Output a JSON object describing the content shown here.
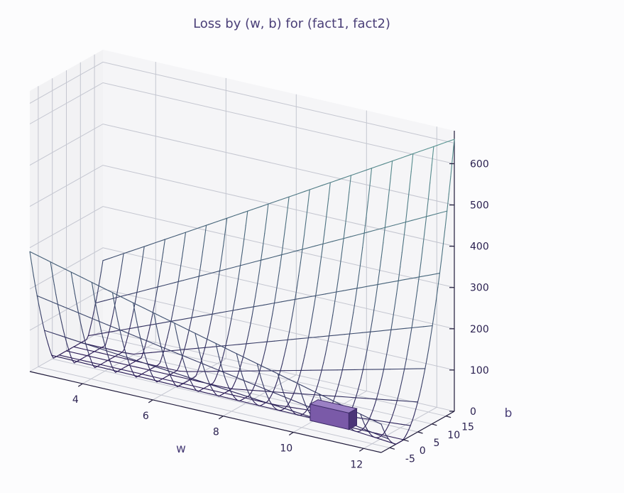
{
  "chart_data": {
    "type": "surface3d",
    "title": "Loss by (w, b) for (fact1, fact2)",
    "xlabel": "w",
    "ylabel": "b",
    "zlabel": "",
    "x_ticks": [
      "4",
      "6",
      "8",
      "10",
      "12"
    ],
    "y_ticks": [
      "-5",
      "0",
      "5",
      "10",
      "15"
    ],
    "z_ticks": [
      "0",
      "100",
      "200",
      "300",
      "400",
      "500",
      "600"
    ],
    "xlim": [
      2.5,
      12.5
    ],
    "ylim": [
      -8,
      18
    ],
    "zlim": [
      0,
      680
    ],
    "grid": true,
    "surface": {
      "w_range": [
        2.5,
        12.5
      ],
      "b_range": [
        -8,
        18
      ],
      "grid_count": [
        18,
        11
      ],
      "min_point": {
        "w": 10.5,
        "b": 0,
        "loss": 2
      },
      "corner_losses": {
        "w_min_b_min": 290,
        "w_min_b_max": 170,
        "w_max_b_min": 60,
        "w_max_b_max": 660
      },
      "colormap_low": "#2a1a55",
      "colormap_high": "#5c9a95"
    },
    "marker": {
      "w": 10.5,
      "b": 0,
      "loss": 2,
      "color": "#7a5aa8"
    }
  }
}
